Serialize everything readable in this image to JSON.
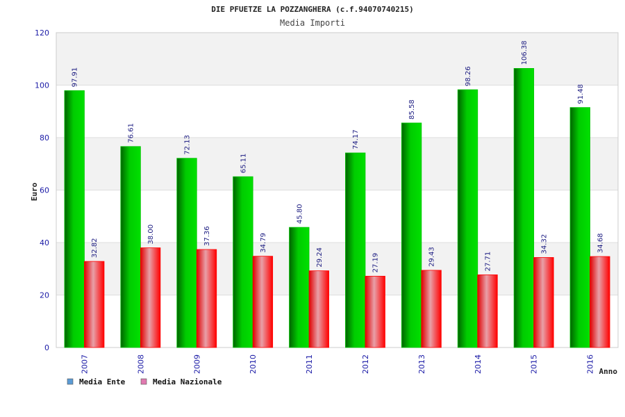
{
  "colors": {
    "series_ente": "#00c400",
    "series_nazionale": "#ff0000",
    "legend_ente": "#5b9bd5",
    "legend_nazionale": "#e07ab0",
    "band": "#f2f2f2",
    "tick_text": "#1a1aa6"
  },
  "chart_data": {
    "type": "bar",
    "title": "DIE PFUETZE LA POZZANGHERA (c.f.94070740215)",
    "subtitle": "Media Importi",
    "xlabel": "Anno",
    "ylabel": "Euro",
    "ylim": [
      0,
      120
    ],
    "yticks": [
      "0",
      "20",
      "40",
      "60",
      "80",
      "100",
      "120"
    ],
    "categories": [
      "2007",
      "2008",
      "2009",
      "2010",
      "2011",
      "2012",
      "2013",
      "2014",
      "2015",
      "2016"
    ],
    "series": [
      {
        "name": "Media Ente",
        "values": [
          97.91,
          76.61,
          72.13,
          65.11,
          45.8,
          74.17,
          85.58,
          98.26,
          106.38,
          91.48
        ],
        "labels": [
          "97.91",
          "76.61",
          "72.13",
          "65.11",
          "45.80",
          "74.17",
          "85.58",
          "98.26",
          "106.38",
          "91.48"
        ]
      },
      {
        "name": "Media Nazionale",
        "values": [
          32.82,
          38.0,
          37.36,
          34.79,
          29.24,
          27.19,
          29.43,
          27.71,
          34.32,
          34.68
        ],
        "labels": [
          "32.82",
          "38.00",
          "37.36",
          "34.79",
          "29.24",
          "27.19",
          "29.43",
          "27.71",
          "34.32",
          "34.68"
        ]
      }
    ],
    "grid": true,
    "legend_position": "bottom-left"
  }
}
